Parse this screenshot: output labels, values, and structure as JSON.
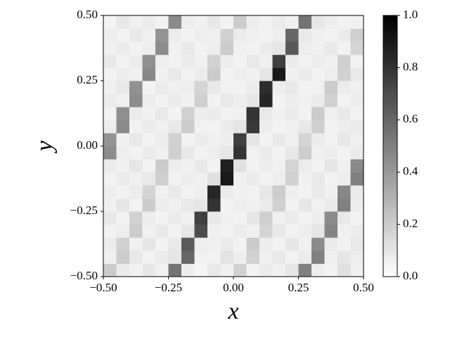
{
  "chart_data": {
    "type": "heatmap",
    "xlabel": "x",
    "ylabel": "y",
    "colormap": "gray_r",
    "xlim": [
      -0.5,
      0.5
    ],
    "ylim": [
      -0.5,
      0.5
    ],
    "clim": [
      0,
      1
    ],
    "xticks": [
      {
        "value": -0.5,
        "label": "−0.50"
      },
      {
        "value": -0.25,
        "label": "−0.25"
      },
      {
        "value": 0,
        "label": "0.00"
      },
      {
        "value": 0.25,
        "label": "0.25"
      },
      {
        "value": 0.5,
        "label": "0.50"
      }
    ],
    "yticks": [
      {
        "value": -0.5,
        "label": "−0.50"
      },
      {
        "value": -0.25,
        "label": "−0.25"
      },
      {
        "value": 0,
        "label": "0.00"
      },
      {
        "value": 0.25,
        "label": "0.25"
      },
      {
        "value": 0.5,
        "label": "0.50"
      }
    ],
    "cticks": [
      {
        "value": 0,
        "label": "0.0"
      },
      {
        "value": 0.2,
        "label": "0.2"
      },
      {
        "value": 0.4,
        "label": "0.4"
      },
      {
        "value": 0.6,
        "label": "0.6"
      },
      {
        "value": 0.8,
        "label": "0.8"
      },
      {
        "value": 1,
        "label": "1.0"
      }
    ],
    "z": [
      [
        0.2,
        0.08,
        0.05,
        0.1,
        0.06,
        0.55,
        0.07,
        0.04,
        0.09,
        0.06,
        0.18,
        0.05,
        0.08,
        0.06,
        0.1,
        0.5,
        0.07,
        0.05,
        0.12,
        0.06
      ],
      [
        0.06,
        0.2,
        0.09,
        0.05,
        0.08,
        0.1,
        0.6,
        0.06,
        0.05,
        0.11,
        0.07,
        0.18,
        0.06,
        0.09,
        0.05,
        0.08,
        0.5,
        0.06,
        0.1,
        0.07
      ],
      [
        0.08,
        0.18,
        0.06,
        0.1,
        0.05,
        0.09,
        0.65,
        0.07,
        0.06,
        0.08,
        0.05,
        0.2,
        0.07,
        0.05,
        0.1,
        0.06,
        0.45,
        0.08,
        0.05,
        0.09
      ],
      [
        0.05,
        0.07,
        0.2,
        0.06,
        0.09,
        0.05,
        0.1,
        0.7,
        0.06,
        0.05,
        0.08,
        0.06,
        0.17,
        0.09,
        0.05,
        0.07,
        0.1,
        0.48,
        0.06,
        0.08
      ],
      [
        0.09,
        0.05,
        0.18,
        0.07,
        0.05,
        0.08,
        0.06,
        0.75,
        0.09,
        0.06,
        0.05,
        0.1,
        0.19,
        0.06,
        0.08,
        0.05,
        0.07,
        0.46,
        0.09,
        0.05
      ],
      [
        0.06,
        0.1,
        0.05,
        0.2,
        0.07,
        0.06,
        0.09,
        0.1,
        0.8,
        0.05,
        0.07,
        0.06,
        0.08,
        0.18,
        0.05,
        0.1,
        0.06,
        0.08,
        0.5,
        0.07
      ],
      [
        0.07,
        0.05,
        0.08,
        0.17,
        0.06,
        0.09,
        0.05,
        0.07,
        0.85,
        0.08,
        0.06,
        0.05,
        0.1,
        0.2,
        0.07,
        0.05,
        0.09,
        0.06,
        0.47,
        0.08
      ],
      [
        0.05,
        0.08,
        0.06,
        0.09,
        0.19,
        0.05,
        0.07,
        0.06,
        0.12,
        0.9,
        0.06,
        0.08,
        0.05,
        0.07,
        0.18,
        0.06,
        0.09,
        0.05,
        0.07,
        0.5
      ],
      [
        0.08,
        0.06,
        0.1,
        0.05,
        0.2,
        0.07,
        0.06,
        0.09,
        0.05,
        0.88,
        0.12,
        0.05,
        0.07,
        0.06,
        0.17,
        0.08,
        0.05,
        0.1,
        0.06,
        0.46
      ],
      [
        0.45,
        0.07,
        0.05,
        0.08,
        0.06,
        0.19,
        0.09,
        0.05,
        0.07,
        0.1,
        0.8,
        0.06,
        0.08,
        0.05,
        0.09,
        0.2,
        0.06,
        0.07,
        0.05,
        0.08
      ],
      [
        0.42,
        0.06,
        0.09,
        0.05,
        0.07,
        0.18,
        0.05,
        0.08,
        0.06,
        0.07,
        0.75,
        0.1,
        0.05,
        0.09,
        0.06,
        0.17,
        0.08,
        0.05,
        0.1,
        0.06
      ],
      [
        0.07,
        0.46,
        0.05,
        0.08,
        0.06,
        0.09,
        0.2,
        0.06,
        0.05,
        0.08,
        0.1,
        0.78,
        0.07,
        0.05,
        0.06,
        0.09,
        0.19,
        0.05,
        0.07,
        0.08
      ],
      [
        0.05,
        0.44,
        0.08,
        0.06,
        0.09,
        0.05,
        0.18,
        0.07,
        0.08,
        0.05,
        0.06,
        0.8,
        0.09,
        0.06,
        0.08,
        0.05,
        0.2,
        0.06,
        0.09,
        0.05
      ],
      [
        0.08,
        0.06,
        0.45,
        0.07,
        0.05,
        0.08,
        0.06,
        0.19,
        0.05,
        0.09,
        0.07,
        0.1,
        0.85,
        0.05,
        0.07,
        0.06,
        0.08,
        0.18,
        0.05,
        0.07
      ],
      [
        0.06,
        0.09,
        0.43,
        0.05,
        0.08,
        0.06,
        0.07,
        0.17,
        0.09,
        0.06,
        0.05,
        0.08,
        0.82,
        0.07,
        0.09,
        0.05,
        0.06,
        0.2,
        0.08,
        0.06
      ],
      [
        0.05,
        0.07,
        0.06,
        0.47,
        0.06,
        0.09,
        0.05,
        0.08,
        0.2,
        0.05,
        0.07,
        0.06,
        0.1,
        0.9,
        0.06,
        0.08,
        0.05,
        0.07,
        0.18,
        0.09
      ],
      [
        0.09,
        0.05,
        0.08,
        0.44,
        0.07,
        0.05,
        0.08,
        0.06,
        0.18,
        0.07,
        0.05,
        0.09,
        0.06,
        0.75,
        0.08,
        0.05,
        0.07,
        0.06,
        0.19,
        0.05
      ],
      [
        0.06,
        0.08,
        0.05,
        0.07,
        0.45,
        0.06,
        0.09,
        0.05,
        0.07,
        0.2,
        0.06,
        0.05,
        0.08,
        0.1,
        0.65,
        0.07,
        0.06,
        0.09,
        0.05,
        0.17
      ],
      [
        0.07,
        0.05,
        0.09,
        0.06,
        0.42,
        0.08,
        0.05,
        0.07,
        0.06,
        0.18,
        0.08,
        0.06,
        0.05,
        0.07,
        0.6,
        0.09,
        0.06,
        0.05,
        0.08,
        0.19
      ],
      [
        0.05,
        0.09,
        0.06,
        0.08,
        0.05,
        0.46,
        0.07,
        0.06,
        0.09,
        0.05,
        0.2,
        0.07,
        0.05,
        0.08,
        0.06,
        0.55,
        0.1,
        0.07,
        0.05,
        0.06
      ]
    ]
  }
}
